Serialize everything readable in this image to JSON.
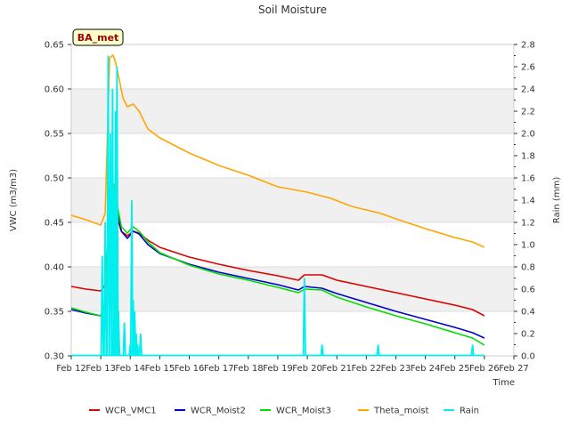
{
  "chart_data": {
    "type": "line",
    "title": "Soil Moisture",
    "site_label": "BA_met",
    "xlabel": "Time",
    "ylabel": "VWC (m3/m3)",
    "ylabel_right": "Rain (mm)",
    "xlim": [
      12,
      27
    ],
    "ylim": [
      0.3,
      0.65
    ],
    "ylim_right": [
      0.0,
      2.8
    ],
    "x_ticks": [
      12,
      13,
      14,
      15,
      16,
      17,
      18,
      19,
      20,
      21,
      22,
      23,
      24,
      25,
      26,
      27
    ],
    "x_tick_labels": [
      "Feb 12",
      "Feb 13",
      "Feb 14",
      "Feb 15",
      "Feb 16",
      "Feb 17",
      "Feb 18",
      "Feb 19",
      "Feb 20",
      "Feb 21",
      "Feb 22",
      "Feb 23",
      "Feb 24",
      "Feb 25",
      "Feb 26",
      "Feb 27"
    ],
    "y_ticks": [
      0.3,
      0.35,
      0.4,
      0.45,
      0.5,
      0.55,
      0.6,
      0.65
    ],
    "y_tick_labels": [
      "0.30",
      "0.35",
      "0.40",
      "0.45",
      "0.50",
      "0.55",
      "0.60",
      "0.65"
    ],
    "y_right_ticks": [
      0.0,
      0.2,
      0.4,
      0.6,
      0.8,
      1.0,
      1.2,
      1.4,
      1.6,
      1.8,
      2.0,
      2.2,
      2.4,
      2.6,
      2.8
    ],
    "y_right_tick_labels": [
      "0.0",
      "0.2",
      "0.4",
      "0.6",
      "0.8",
      "1.0",
      "1.2",
      "1.4",
      "1.6",
      "1.8",
      "2.0",
      "2.2",
      "2.4",
      "2.6",
      "2.8"
    ],
    "grid": "horizontal bands",
    "legend_position": "bottom",
    "series": [
      {
        "name": "WCR_VMC1",
        "color": "#dd0000",
        "axis": "left",
        "x": [
          12.0,
          12.5,
          13.0,
          13.15,
          13.3,
          13.45,
          13.55,
          13.7,
          13.9,
          14.1,
          14.3,
          14.6,
          15.0,
          16.0,
          17.0,
          18.0,
          19.0,
          19.7,
          19.9,
          20.5,
          21.0,
          22.0,
          23.0,
          24.0,
          25.0,
          25.6,
          26.0
        ],
        "y": [
          0.378,
          0.375,
          0.373,
          0.38,
          0.46,
          0.465,
          0.455,
          0.44,
          0.435,
          0.44,
          0.438,
          0.43,
          0.422,
          0.411,
          0.403,
          0.396,
          0.39,
          0.385,
          0.391,
          0.391,
          0.385,
          0.378,
          0.371,
          0.364,
          0.357,
          0.352,
          0.345
        ]
      },
      {
        "name": "WCR_Moist2",
        "color": "#0000cc",
        "axis": "left",
        "x": [
          12.0,
          12.5,
          13.0,
          13.15,
          13.3,
          13.45,
          13.55,
          13.7,
          13.9,
          14.1,
          14.3,
          14.6,
          15.0,
          16.0,
          17.0,
          18.0,
          19.0,
          19.7,
          19.9,
          20.5,
          21.0,
          22.0,
          23.0,
          24.0,
          25.0,
          25.6,
          26.0
        ],
        "y": [
          0.352,
          0.348,
          0.345,
          0.36,
          0.46,
          0.478,
          0.465,
          0.44,
          0.432,
          0.44,
          0.437,
          0.425,
          0.415,
          0.403,
          0.394,
          0.387,
          0.38,
          0.374,
          0.378,
          0.376,
          0.37,
          0.36,
          0.35,
          0.341,
          0.332,
          0.326,
          0.32
        ]
      },
      {
        "name": "WCR_Moist3",
        "color": "#00dd00",
        "axis": "left",
        "x": [
          12.0,
          12.5,
          13.0,
          13.15,
          13.3,
          13.45,
          13.55,
          13.7,
          13.9,
          14.1,
          14.3,
          14.6,
          15.0,
          16.0,
          17.0,
          18.0,
          19.0,
          19.7,
          19.9,
          20.5,
          21.0,
          22.0,
          23.0,
          24.0,
          25.0,
          25.6,
          26.0
        ],
        "y": [
          0.354,
          0.349,
          0.345,
          0.36,
          0.49,
          0.492,
          0.47,
          0.445,
          0.438,
          0.445,
          0.44,
          0.428,
          0.416,
          0.402,
          0.392,
          0.385,
          0.377,
          0.371,
          0.375,
          0.374,
          0.366,
          0.355,
          0.345,
          0.336,
          0.326,
          0.32,
          0.312
        ]
      },
      {
        "name": "Theta_moist",
        "color": "#ffa500",
        "axis": "left",
        "x": [
          12.0,
          12.5,
          13.0,
          13.15,
          13.3,
          13.42,
          13.5,
          13.6,
          13.75,
          13.9,
          14.1,
          14.3,
          14.6,
          15.0,
          16.0,
          17.0,
          18.0,
          19.0,
          20.0,
          20.8,
          21.5,
          22.5,
          23.0,
          24.0,
          25.0,
          25.6,
          26.0
        ],
        "y": [
          0.458,
          0.453,
          0.447,
          0.46,
          0.635,
          0.638,
          0.63,
          0.615,
          0.59,
          0.58,
          0.583,
          0.575,
          0.555,
          0.545,
          0.528,
          0.514,
          0.503,
          0.49,
          0.484,
          0.477,
          0.468,
          0.46,
          0.454,
          0.443,
          0.433,
          0.428,
          0.422
        ]
      },
      {
        "name": "Rain",
        "color": "#00eeee",
        "axis": "right",
        "type": "bar",
        "x": [
          13.05,
          13.15,
          13.25,
          13.33,
          13.4,
          13.45,
          13.5,
          13.55,
          13.6,
          13.8,
          14.0,
          14.05,
          14.1,
          14.15,
          14.2,
          14.25,
          14.35,
          19.9,
          20.5,
          22.4,
          25.6
        ],
        "y": [
          0.9,
          1.2,
          2.7,
          2.0,
          2.4,
          1.5,
          2.2,
          2.6,
          0.4,
          0.3,
          0.1,
          1.4,
          0.5,
          0.4,
          0.2,
          0.1,
          0.2,
          0.7,
          0.1,
          0.1,
          0.1
        ]
      }
    ]
  }
}
